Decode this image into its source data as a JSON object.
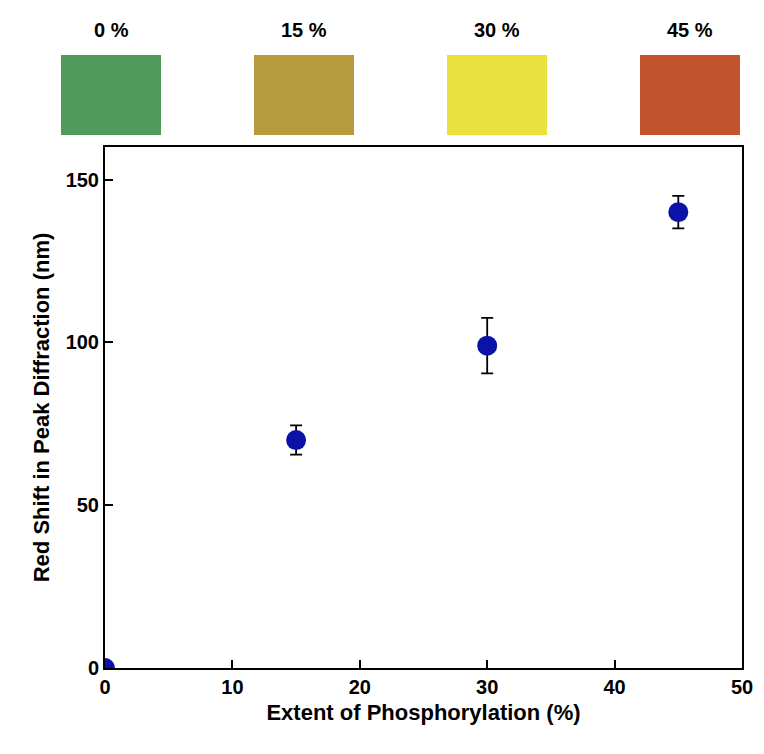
{
  "chart_data": {
    "type": "scatter",
    "x": [
      0,
      15,
      30,
      45
    ],
    "values": [
      0,
      70,
      99,
      140
    ],
    "error": [
      0,
      4.5,
      8.5,
      5
    ],
    "color": "#0b12a8",
    "marker": "circle",
    "xlabel": "Extent of Phosphorylation (%)",
    "ylabel": "Red Shift in Peak Diffraction (nm)",
    "xlim": [
      0,
      50
    ],
    "ylim": [
      0,
      160
    ],
    "xticks": [
      0,
      10,
      20,
      30,
      40,
      50
    ],
    "yticks": [
      0,
      50,
      100,
      150
    ],
    "grid": false,
    "annotations": [
      {
        "text": "0 %",
        "color": "#4f9a5c"
      },
      {
        "text": "15 %",
        "color": "#b59a3e"
      },
      {
        "text": "30 %",
        "color": "#e9e23e"
      },
      {
        "text": "45 %",
        "color": "#c2532c"
      }
    ]
  }
}
